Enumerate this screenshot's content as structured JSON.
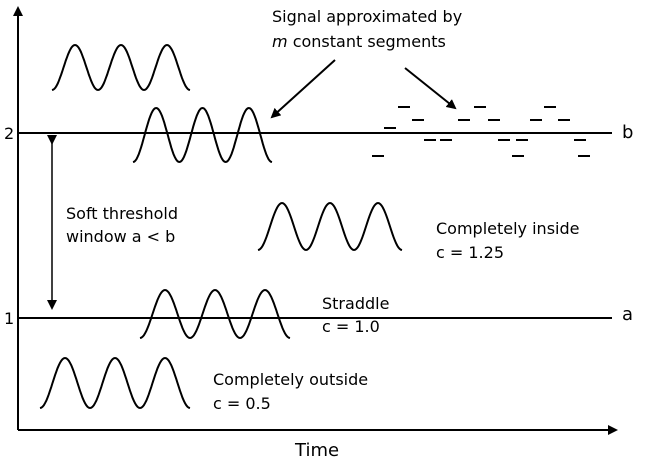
{
  "annotation": {
    "line1": "Signal approximated by",
    "line2_var": "m",
    "line2_rest": "constant segments"
  },
  "axis": {
    "x_label": "Time",
    "y_tick_2": "2",
    "y_tick_1": "1",
    "line_b": "b",
    "line_a": "a"
  },
  "window": {
    "line1": "Soft threshold",
    "line2": "window a < b"
  },
  "cases": [
    {
      "name": "Completely inside",
      "value": "c = 1.25"
    },
    {
      "name": "Straddle",
      "value": "c = 1.0"
    },
    {
      "name": "Completely outside",
      "value": "c = 0.5"
    }
  ]
}
